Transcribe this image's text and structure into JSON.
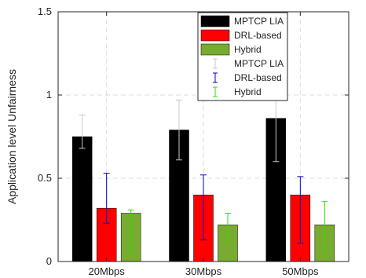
{
  "chart_data": {
    "type": "bar",
    "categories": [
      "20Mbps",
      "30Mbps",
      "50Mbps"
    ],
    "ylabel": "Application level Unfairness",
    "ylim": [
      0,
      1.5
    ],
    "yticks": [
      0,
      0.5,
      1,
      1.5
    ],
    "ytick_labels": [
      "0",
      "0.5",
      "1",
      "1.5"
    ],
    "grid": true,
    "legend_position": "top-right",
    "series": [
      {
        "name": "MPTCP LIA",
        "color": "#000000",
        "values": [
          0.75,
          0.79,
          0.86
        ],
        "error_low": [
          0.68,
          0.61,
          0.6
        ],
        "error_high": [
          0.88,
          0.97,
          1.0
        ],
        "error_color": "#c8c8c8"
      },
      {
        "name": "DRL-based",
        "color": "#ff0000",
        "values": [
          0.32,
          0.4,
          0.4
        ],
        "error_low": [
          0.23,
          0.13,
          0.11
        ],
        "error_high": [
          0.53,
          0.52,
          0.51
        ],
        "error_color": "#0000cc"
      },
      {
        "name": "Hybrid",
        "color": "#77ac30",
        "values": [
          0.29,
          0.22,
          0.22
        ],
        "error_low": [
          0.06,
          0.12,
          0.06
        ],
        "error_high": [
          0.31,
          0.29,
          0.36
        ],
        "error_color": "#33dd00"
      }
    ],
    "legend_errorbar_labels": [
      "MPTCP LIA",
      "DRL-based",
      "Hybrid"
    ]
  }
}
